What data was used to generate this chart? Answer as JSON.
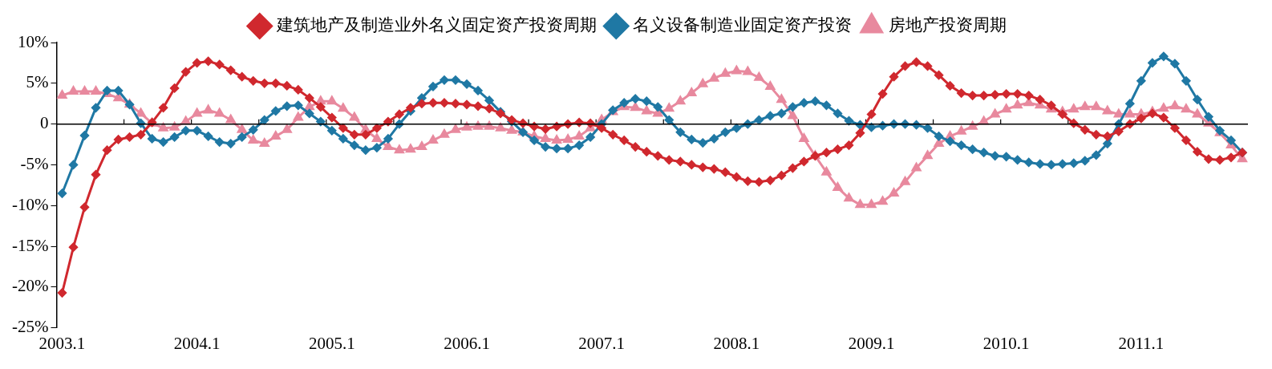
{
  "chart_data": {
    "type": "line",
    "categories": [
      "2003.1",
      null,
      null,
      null,
      null,
      null,
      null,
      null,
      null,
      null,
      null,
      null,
      "2004.1",
      null,
      null,
      null,
      null,
      null,
      null,
      null,
      null,
      null,
      null,
      null,
      "2005.1",
      null,
      null,
      null,
      null,
      null,
      null,
      null,
      null,
      null,
      null,
      null,
      "2006.1",
      null,
      null,
      null,
      null,
      null,
      null,
      null,
      null,
      null,
      null,
      null,
      "2007.1",
      null,
      null,
      null,
      null,
      null,
      null,
      null,
      null,
      null,
      null,
      null,
      "2008.1",
      null,
      null,
      null,
      null,
      null,
      null,
      null,
      null,
      null,
      null,
      null,
      "2009.1",
      null,
      null,
      null,
      null,
      null,
      null,
      null,
      null,
      null,
      null,
      null,
      "2010.1",
      null,
      null,
      null,
      null,
      null,
      null,
      null,
      null,
      null,
      null,
      null,
      "2011.1",
      null,
      null,
      null,
      null,
      null,
      null,
      null,
      null,
      null
    ],
    "series": [
      {
        "name": "建筑地产及制造业外名义固定资产投资周期",
        "color": "#d0282e",
        "marker": "diamond",
        "values": [
          -20.7,
          -15.1,
          -10.2,
          -6.2,
          -3.2,
          -1.9,
          -1.6,
          -1.3,
          0.2,
          2.0,
          4.4,
          6.4,
          7.5,
          7.7,
          7.3,
          6.6,
          5.8,
          5.3,
          5.0,
          5.0,
          4.7,
          4.2,
          3.2,
          2.1,
          0.8,
          -0.5,
          -1.3,
          -1.3,
          -0.5,
          0.3,
          1.2,
          2.0,
          2.5,
          2.6,
          2.6,
          2.5,
          2.4,
          2.2,
          1.9,
          1.3,
          0.5,
          0.1,
          -0.3,
          -0.6,
          -0.3,
          0.0,
          0.2,
          0.1,
          -0.5,
          -1.3,
          -2.0,
          -2.8,
          -3.4,
          -3.9,
          -4.4,
          -4.6,
          -5.0,
          -5.3,
          -5.5,
          -5.9,
          -6.5,
          -7.0,
          -7.1,
          -6.9,
          -6.3,
          -5.4,
          -4.6,
          -3.9,
          -3.5,
          -3.1,
          -2.6,
          -1.1,
          1.2,
          3.7,
          5.8,
          7.1,
          7.6,
          7.1,
          6.0,
          4.7,
          3.8,
          3.5,
          3.5,
          3.6,
          3.7,
          3.7,
          3.5,
          3.0,
          2.3,
          1.2,
          0.1,
          -0.7,
          -1.3,
          -1.5,
          -0.9,
          0.0,
          0.7,
          1.3,
          0.8,
          -0.5,
          -2.0,
          -3.4,
          -4.3,
          -4.4,
          -4.1,
          -3.5
        ]
      },
      {
        "name": "名义设备制造业固定资产投资",
        "color": "#1f78a4",
        "marker": "diamond",
        "values": [
          -8.5,
          -5.0,
          -1.4,
          2.0,
          4.1,
          4.1,
          2.4,
          0.1,
          -1.8,
          -2.2,
          -1.6,
          -0.8,
          -0.8,
          -1.5,
          -2.2,
          -2.4,
          -1.6,
          -0.7,
          0.5,
          1.6,
          2.2,
          2.3,
          1.3,
          0.3,
          -0.8,
          -1.8,
          -2.6,
          -3.2,
          -2.9,
          -1.8,
          0.0,
          1.6,
          3.2,
          4.6,
          5.4,
          5.4,
          4.9,
          4.1,
          2.9,
          1.5,
          0.3,
          -1.0,
          -2.0,
          -2.8,
          -3.0,
          -3.0,
          -2.6,
          -1.6,
          0.0,
          1.7,
          2.6,
          3.1,
          2.8,
          2.1,
          0.5,
          -1.0,
          -1.9,
          -2.3,
          -1.8,
          -1.0,
          -0.5,
          0.0,
          0.5,
          1.0,
          1.3,
          2.1,
          2.6,
          2.8,
          2.3,
          1.3,
          0.4,
          -0.1,
          -0.4,
          -0.2,
          0.0,
          0.0,
          -0.1,
          -0.5,
          -1.5,
          -2.1,
          -2.6,
          -3.1,
          -3.5,
          -3.9,
          -4.0,
          -4.4,
          -4.7,
          -4.9,
          -5.0,
          -4.9,
          -4.8,
          -4.5,
          -3.8,
          -2.4,
          0.0,
          2.5,
          5.3,
          7.5,
          8.3,
          7.4,
          5.3,
          3.0,
          0.9,
          -0.8,
          -2.0,
          -3.5
        ]
      },
      {
        "name": "房地产投资周期",
        "color": "#e8899e",
        "marker": "triangle",
        "values": [
          3.5,
          4.0,
          4.0,
          4.0,
          3.7,
          3.2,
          2.4,
          1.3,
          0.1,
          -0.5,
          -0.4,
          0.3,
          1.3,
          1.7,
          1.3,
          0.5,
          -0.7,
          -2.0,
          -2.4,
          -1.5,
          -0.7,
          0.8,
          2.1,
          2.8,
          2.8,
          1.9,
          0.8,
          -0.7,
          -1.8,
          -2.8,
          -3.2,
          -3.1,
          -2.8,
          -2.0,
          -1.3,
          -0.7,
          -0.4,
          -0.3,
          -0.3,
          -0.5,
          -0.8,
          -1.0,
          -1.5,
          -1.8,
          -2.0,
          -1.9,
          -1.5,
          -0.5,
          0.5,
          1.5,
          2.1,
          2.0,
          1.6,
          1.3,
          1.9,
          2.8,
          3.8,
          4.9,
          5.6,
          6.2,
          6.5,
          6.4,
          5.7,
          4.6,
          3.0,
          1.0,
          -1.8,
          -3.9,
          -5.9,
          -7.8,
          -9.1,
          -9.9,
          -9.9,
          -9.5,
          -8.5,
          -7.1,
          -5.4,
          -3.9,
          -2.4,
          -1.5,
          -0.9,
          -0.3,
          0.3,
          1.2,
          1.8,
          2.3,
          2.6,
          2.3,
          1.8,
          1.5,
          1.8,
          2.1,
          2.1,
          1.6,
          1.2,
          1.2,
          1.2,
          1.5,
          1.9,
          2.2,
          1.8,
          1.2,
          0.1,
          -1.1,
          -2.6,
          -4.3
        ]
      }
    ],
    "ylim": [
      -25,
      10
    ],
    "yticks": [
      {
        "value": 10,
        "label": "10%"
      },
      {
        "value": 5,
        "label": "5%"
      },
      0,
      {
        "value": -5,
        "label": "-5%"
      },
      {
        "value": -10,
        "label": "-10%"
      },
      {
        "value": -15,
        "label": "-15%"
      },
      {
        "value": -20,
        "label": "-20%"
      },
      {
        "value": -25,
        "label": "-25%"
      }
    ],
    "ref_lines": [
      {
        "axis": "y",
        "value": 0,
        "color": "#000000"
      }
    ],
    "legend": "top",
    "grid": false,
    "line_style": "solid"
  }
}
